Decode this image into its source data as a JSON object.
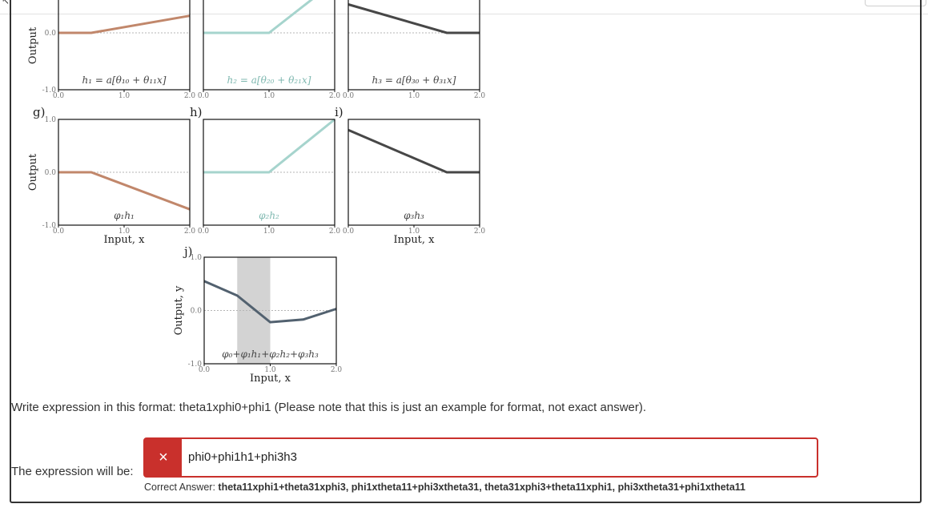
{
  "corner_glyph": "↖",
  "panels": [
    {
      "id": "top1",
      "label": "",
      "tag": "h₁ = a[θ₁₀ + θ₁₁x]",
      "ylabel": "Output",
      "xlabel": "",
      "x": [
        0,
        0.5,
        2
      ],
      "y": [
        0,
        0,
        0.3
      ],
      "color": "#c1876b",
      "yticks": [
        "-1.0",
        "0.0"
      ]
    },
    {
      "id": "top2",
      "label": "",
      "tag": "h₂ = a[θ₂₀ + θ₂₁x]",
      "ylabel": "",
      "xlabel": "",
      "x": [
        0,
        1,
        2
      ],
      "y": [
        0,
        0,
        0.9
      ],
      "color": "#a6d4cd",
      "yticks": []
    },
    {
      "id": "top3",
      "label": "",
      "tag": "h₃ = a[θ₃₀ + θ₃₁x]",
      "ylabel": "",
      "xlabel": "",
      "x": [
        0,
        1.5,
        2
      ],
      "y": [
        0.5,
        0,
        0
      ],
      "color": "#474747",
      "yticks": []
    },
    {
      "id": "g",
      "label": "g)",
      "tag": "φ₁h₁",
      "ylabel": "Output",
      "xlabel": "Input, x",
      "x": [
        0,
        0.5,
        2
      ],
      "y": [
        0,
        0,
        -0.7
      ],
      "color": "#c1876b",
      "yticks": [
        "-1.0",
        "0.0",
        "1.0"
      ]
    },
    {
      "id": "h",
      "label": "h)",
      "tag": "φ₂h₂",
      "ylabel": "",
      "xlabel": "",
      "x": [
        0,
        1,
        2
      ],
      "y": [
        0,
        0,
        1.0
      ],
      "color": "#a6d4cd",
      "yticks": []
    },
    {
      "id": "i",
      "label": "i)",
      "tag": "φ₃h₃",
      "ylabel": "",
      "xlabel": "Input, x",
      "x": [
        0,
        1.5,
        2
      ],
      "y": [
        0.8,
        0,
        0
      ],
      "color": "#474747",
      "yticks": []
    },
    {
      "id": "j",
      "label": "j)",
      "tag": "φ₀+φ₁h₁+φ₂h₂+φ₃h₃",
      "ylabel": "Output, y",
      "xlabel": "Input, x",
      "x": [
        0,
        0.5,
        1,
        1.5,
        2
      ],
      "y": [
        0.55,
        0.28,
        -0.22,
        -0.17,
        0.03
      ],
      "color": "#52616f",
      "yticks": [
        "-1.0",
        "0.0",
        "1.0"
      ],
      "shade": [
        0.5,
        1.0
      ]
    }
  ],
  "xticks": [
    "0.0",
    "1.0",
    "2.0"
  ],
  "question": {
    "prompt": "Write expression in this format: theta1xphi0+phi1 (Please note that this is just an example for format, not exact answer).",
    "label": "The expression will be:",
    "value": "phi0+phi1h1+phi3h3",
    "status_icon": "×",
    "correct_label": "Correct Answer:",
    "correct_value": "theta11xphi1+theta31xphi3, phi1xtheta11+phi3xtheta31, theta31xphi3+theta11xphi1, phi3xtheta31+phi1xtheta11"
  },
  "colors": {
    "error": "#c9302c",
    "text": "#333333"
  }
}
